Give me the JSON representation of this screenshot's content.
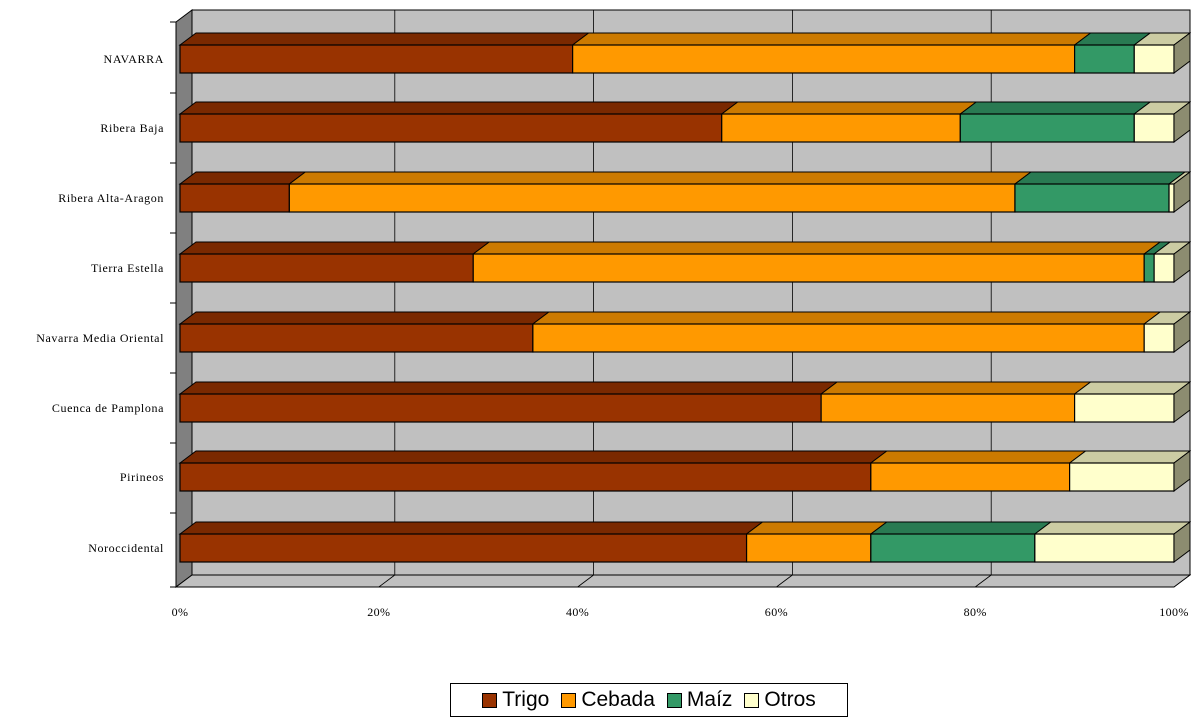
{
  "chart_data": {
    "type": "bar",
    "orientation": "horizontal",
    "stacked": "percent",
    "three_d": true,
    "categories": [
      "Noroccidental",
      "Pirineos",
      "Cuenca de Pamplona",
      "Navarra Media Oriental",
      "Tierra Estella",
      "Ribera Alta-Aragon",
      "Ribera Baja",
      "NAVARRA"
    ],
    "series": [
      {
        "name": "Trigo",
        "color": "#993300",
        "values": [
          57,
          69.5,
          64.5,
          35.5,
          29.5,
          11,
          54.5,
          39.5
        ]
      },
      {
        "name": "Cebada",
        "color": "#FF9900",
        "values": [
          12.5,
          20,
          25.5,
          61.5,
          67.5,
          73,
          24,
          50.5
        ]
      },
      {
        "name": "Maíz",
        "color": "#339966",
        "values": [
          16.5,
          0,
          0,
          0,
          1,
          15.5,
          17.5,
          6
        ]
      },
      {
        "name": "Otros",
        "color": "#FFFFCC",
        "values": [
          14,
          10.5,
          10,
          3,
          2,
          0.5,
          4,
          4
        ]
      }
    ],
    "x_ticks": [
      "0%",
      "20%",
      "40%",
      "60%",
      "80%",
      "100%"
    ],
    "xlim": [
      0,
      100
    ],
    "grid": true,
    "legend": "bottom",
    "title": "",
    "xlabel": "",
    "ylabel": ""
  }
}
